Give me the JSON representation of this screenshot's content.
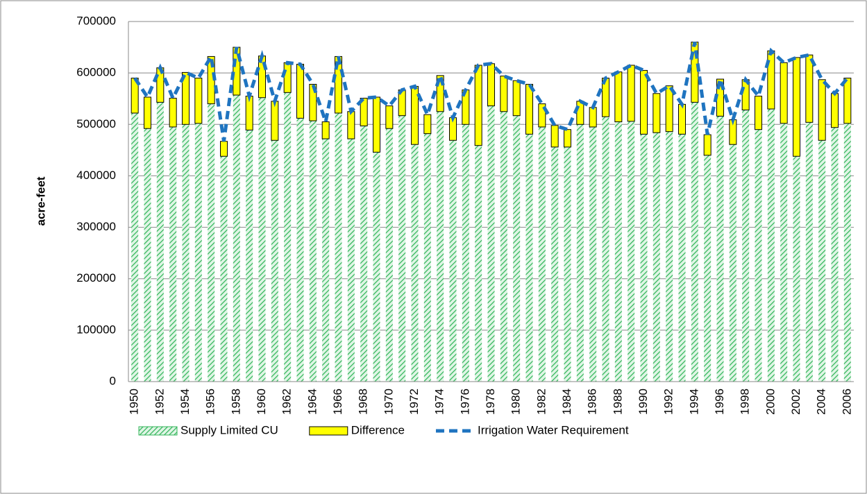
{
  "chart_data": {
    "type": "stacked-bar-line",
    "y_label": "acre-feet",
    "categories": [
      "1950",
      null,
      "1952",
      null,
      "1954",
      null,
      "1956",
      null,
      "1958",
      null,
      "1960",
      null,
      "1962",
      null,
      "1964",
      null,
      "1966",
      null,
      "1968",
      null,
      "1970",
      null,
      "1972",
      null,
      "1974",
      null,
      "1976",
      null,
      "1978",
      null,
      "1980",
      null,
      "1982",
      null,
      "1984",
      null,
      "1986",
      null,
      "1988",
      null,
      "1990",
      null,
      "1992",
      null,
      "1994",
      null,
      "1996",
      null,
      "1998",
      null,
      "2000",
      null,
      "2002",
      null,
      "2004",
      null,
      "2006"
    ],
    "series": [
      {
        "name": "Supply Limited CU",
        "type": "bar",
        "color": "#33b55a",
        "values": [
          522000,
          492000,
          543000,
          495000,
          500000,
          502000,
          540000,
          438000,
          557000,
          489000,
          552000,
          469000,
          562000,
          512000,
          507000,
          472000,
          522000,
          472000,
          497000,
          446000,
          492000,
          517000,
          461000,
          482000,
          525000,
          469000,
          500000,
          459000,
          536000,
          525000,
          517000,
          481000,
          495000,
          456000,
          456000,
          500000,
          495000,
          515000,
          505000,
          506000,
          481000,
          484000,
          486000,
          481000,
          543000,
          440000,
          516000,
          461000,
          528000,
          490000,
          530000,
          502000,
          438000,
          504000,
          469000,
          494000,
          502000
        ]
      },
      {
        "name": "Difference",
        "type": "bar",
        "color": "#ffff00",
        "values": [
          68000,
          61000,
          67000,
          56000,
          101000,
          88000,
          92000,
          29000,
          93000,
          66000,
          81000,
          76000,
          58000,
          105000,
          71000,
          33000,
          110000,
          53000,
          54000,
          107000,
          44000,
          50000,
          113000,
          37000,
          70000,
          44000,
          67000,
          156000,
          82000,
          69000,
          68000,
          97000,
          45000,
          42000,
          34000,
          45000,
          38000,
          75000,
          97000,
          109000,
          124000,
          76000,
          89000,
          58000,
          117000,
          40000,
          72000,
          48000,
          59000,
          65000,
          113000,
          118000,
          192000,
          131000,
          118000,
          66000,
          88000
        ]
      },
      {
        "name": "Irrigation Water Requirement",
        "type": "line",
        "color": "#1f74c0",
        "values": [
          590000,
          553000,
          610000,
          551000,
          601000,
          590000,
          632000,
          467000,
          650000,
          555000,
          633000,
          545000,
          620000,
          617000,
          578000,
          505000,
          632000,
          525000,
          551000,
          553000,
          536000,
          567000,
          574000,
          519000,
          595000,
          513000,
          567000,
          615000,
          618000,
          594000,
          585000,
          578000,
          540000,
          498000,
          490000,
          545000,
          533000,
          590000,
          602000,
          615000,
          605000,
          560000,
          575000,
          539000,
          660000,
          480000,
          588000,
          509000,
          587000,
          555000,
          643000,
          620000,
          630000,
          635000,
          587000,
          560000,
          590000
        ]
      }
    ],
    "ylim": [
      0,
      700000
    ],
    "yticks": [
      0,
      100000,
      200000,
      300000,
      400000,
      500000,
      600000,
      700000
    ],
    "grid": true,
    "legend": "bottom"
  }
}
